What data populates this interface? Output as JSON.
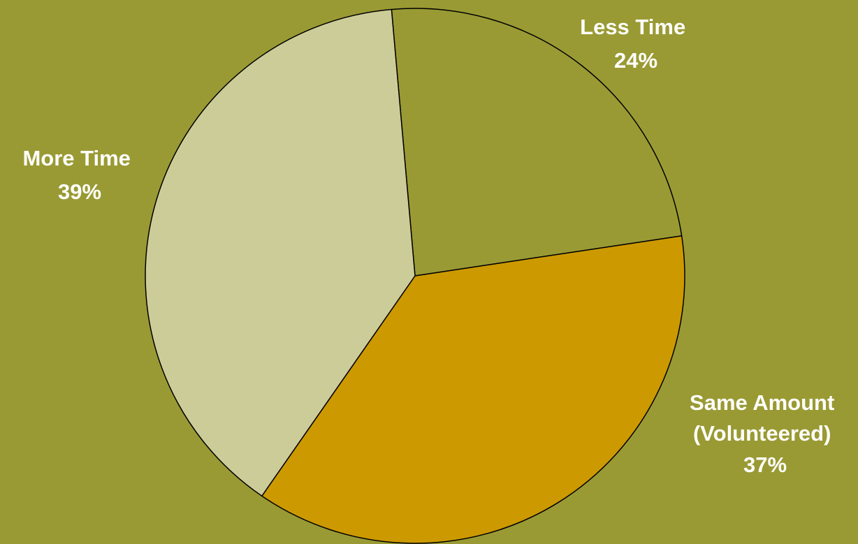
{
  "background_color": "#9a9a34",
  "chart_data": {
    "type": "pie",
    "title": "",
    "start_angle_deg": -5,
    "direction": "clockwise",
    "outline_color": "#000000",
    "slices": [
      {
        "label": "Less Time",
        "value": 24,
        "percent_label": "24%",
        "color": "#9a9a34"
      },
      {
        "label": "Same Amount (Volunteered)",
        "value": 37,
        "percent_label": "37%",
        "color": "#cc9900"
      },
      {
        "label": "More Time",
        "value": 39,
        "percent_label": "39%",
        "color": "#cccc99"
      }
    ]
  }
}
